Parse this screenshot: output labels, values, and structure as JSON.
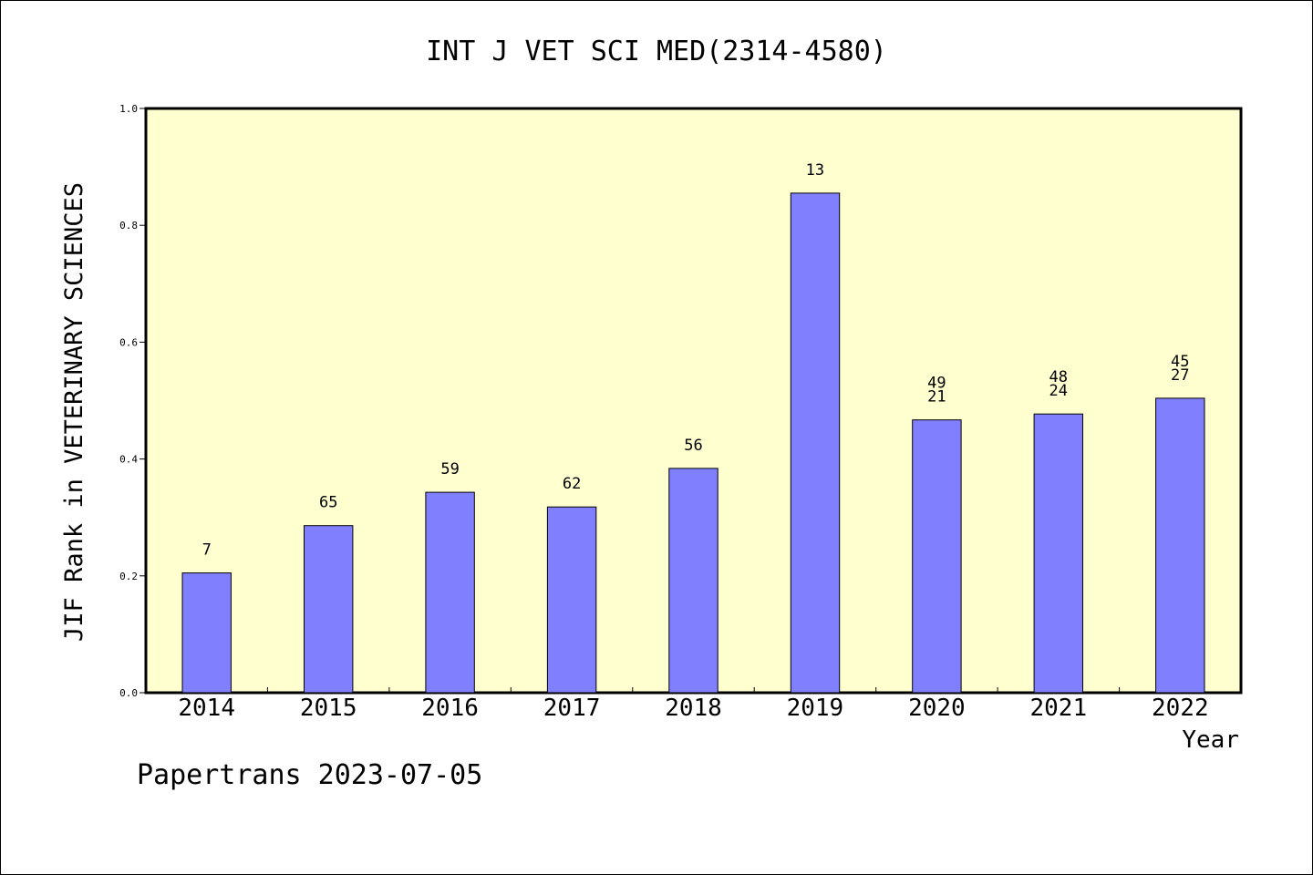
{
  "chart_data": {
    "type": "bar",
    "title": "INT J VET SCI MED(2314-4580)",
    "xlabel": "Year",
    "ylabel": "JIF Rank in VETERINARY SCIENCES",
    "ylim": [
      0,
      1.0
    ],
    "yticks": [
      "0.0",
      "0.2",
      "0.4",
      "0.6",
      "0.8",
      "1.0"
    ],
    "grid": false,
    "categories": [
      "2014",
      "2015",
      "2016",
      "2017",
      "2018",
      "2019",
      "2020",
      "2021",
      "2022"
    ],
    "values": [
      0.205,
      0.286,
      0.343,
      0.318,
      0.384,
      0.855,
      0.467,
      0.477,
      0.504
    ],
    "bar_labels": [
      [
        "7"
      ],
      [
        "65"
      ],
      [
        "59"
      ],
      [
        "62"
      ],
      [
        "56"
      ],
      [
        "13"
      ],
      [
        "49",
        "21"
      ],
      [
        "48",
        "24"
      ],
      [
        "45",
        "27"
      ]
    ],
    "colors": {
      "plot_background": "#ffffd0",
      "bar_fill": "#8080ff",
      "bar_stroke": "#000000"
    }
  },
  "footer": {
    "text": "Papertrans 2023-07-05"
  }
}
